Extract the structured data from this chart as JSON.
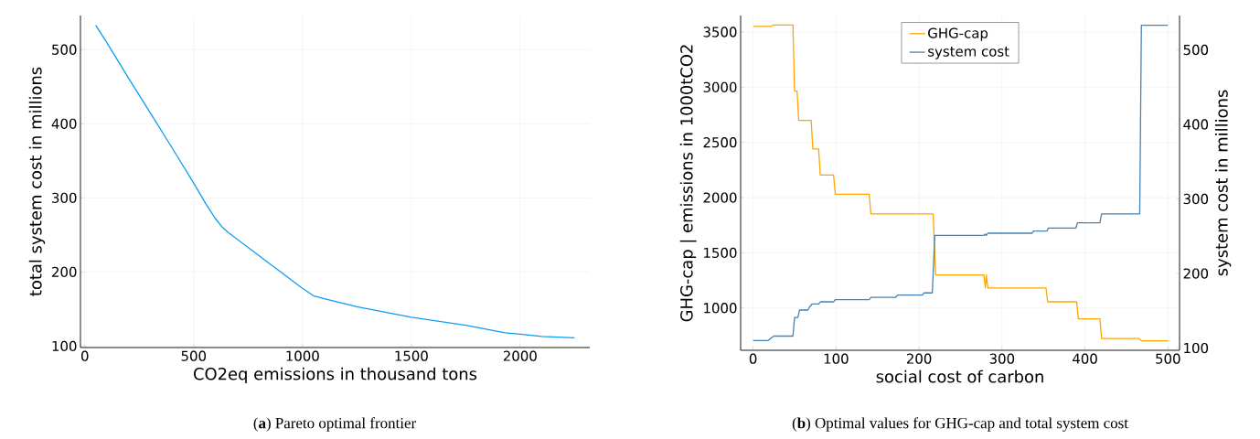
{
  "chart_data": [
    {
      "type": "line",
      "title": "(**a**) Pareto optimal frontier",
      "xlabel": "CO2eq emissions in thousand tons",
      "ylabel": "total system cost in millions",
      "xlim": [
        -20,
        2320
      ],
      "ylim": [
        98,
        546
      ],
      "xticks": [
        0,
        500,
        1000,
        1500,
        2000
      ],
      "yticks": [
        100,
        200,
        300,
        400,
        500
      ],
      "grid": true,
      "series": [
        {
          "color": "#0e9cf2",
          "x": [
            50,
            100,
            200,
            300,
            400,
            500,
            560,
            600,
            630,
            660,
            800,
            1000,
            1050,
            1100,
            1250,
            1500,
            1750,
            1930,
            2000,
            2100,
            2250
          ],
          "values": [
            533,
            510,
            462,
            415,
            368,
            320,
            290,
            272,
            261,
            253,
            222,
            178,
            168,
            164,
            153,
            139,
            128,
            118,
            116,
            113,
            111
          ]
        }
      ]
    },
    {
      "type": "line",
      "title": "(**b**) Optimal values for GHG-cap and total system cost",
      "xlabel": "social cost of carbon",
      "ylabel": "GHG-cap | emissions in 1000tCO2",
      "y2label": "system cost in millions",
      "xlim": [
        -15,
        514
      ],
      "ylim": [
        617,
        3649
      ],
      "y2lim": [
        97,
        546
      ],
      "xticks": [
        0,
        100,
        200,
        300,
        400,
        500
      ],
      "yticks": [
        1000,
        1500,
        2000,
        2500,
        3000,
        3500
      ],
      "y2ticks": [
        100,
        200,
        300,
        400,
        500
      ],
      "grid": true,
      "legend": "top",
      "series": [
        {
          "name": "GHG-cap",
          "color": "#ffa500",
          "x": [
            0,
            22,
            24,
            48,
            50,
            53,
            55,
            70,
            72,
            79,
            81,
            97,
            99,
            140,
            142,
            217,
            220,
            278,
            280,
            281,
            283,
            353,
            355,
            390,
            392,
            418,
            420,
            465,
            468,
            500
          ],
          "values": [
            3550,
            3550,
            3563,
            3563,
            2965,
            2965,
            2700,
            2700,
            2440,
            2440,
            2205,
            2205,
            2030,
            2030,
            1852,
            1852,
            1300,
            1300,
            1182,
            1300,
            1182,
            1182,
            1056,
            1056,
            902,
            902,
            724,
            724,
            703,
            703
          ]
        },
        {
          "name": "system cost",
          "color": "#4682b4",
          "axis": "y2",
          "x": [
            0,
            18,
            21,
            25,
            48,
            50,
            54,
            56,
            66,
            68,
            71,
            79,
            81,
            97,
            99,
            140,
            142,
            172,
            174,
            204,
            206,
            216,
            219,
            278,
            280,
            281,
            283,
            336,
            338,
            354,
            356,
            389,
            391,
            418,
            420,
            466,
            468,
            500
          ],
          "values": [
            110,
            110,
            113,
            116,
            116,
            141,
            141,
            151,
            151,
            155,
            159,
            159,
            162,
            162,
            165,
            165,
            168,
            168,
            171,
            171,
            174,
            174,
            251,
            251,
            253,
            251,
            254,
            254,
            257,
            257,
            261,
            261,
            268,
            268,
            280,
            280,
            533,
            533
          ]
        }
      ]
    }
  ]
}
